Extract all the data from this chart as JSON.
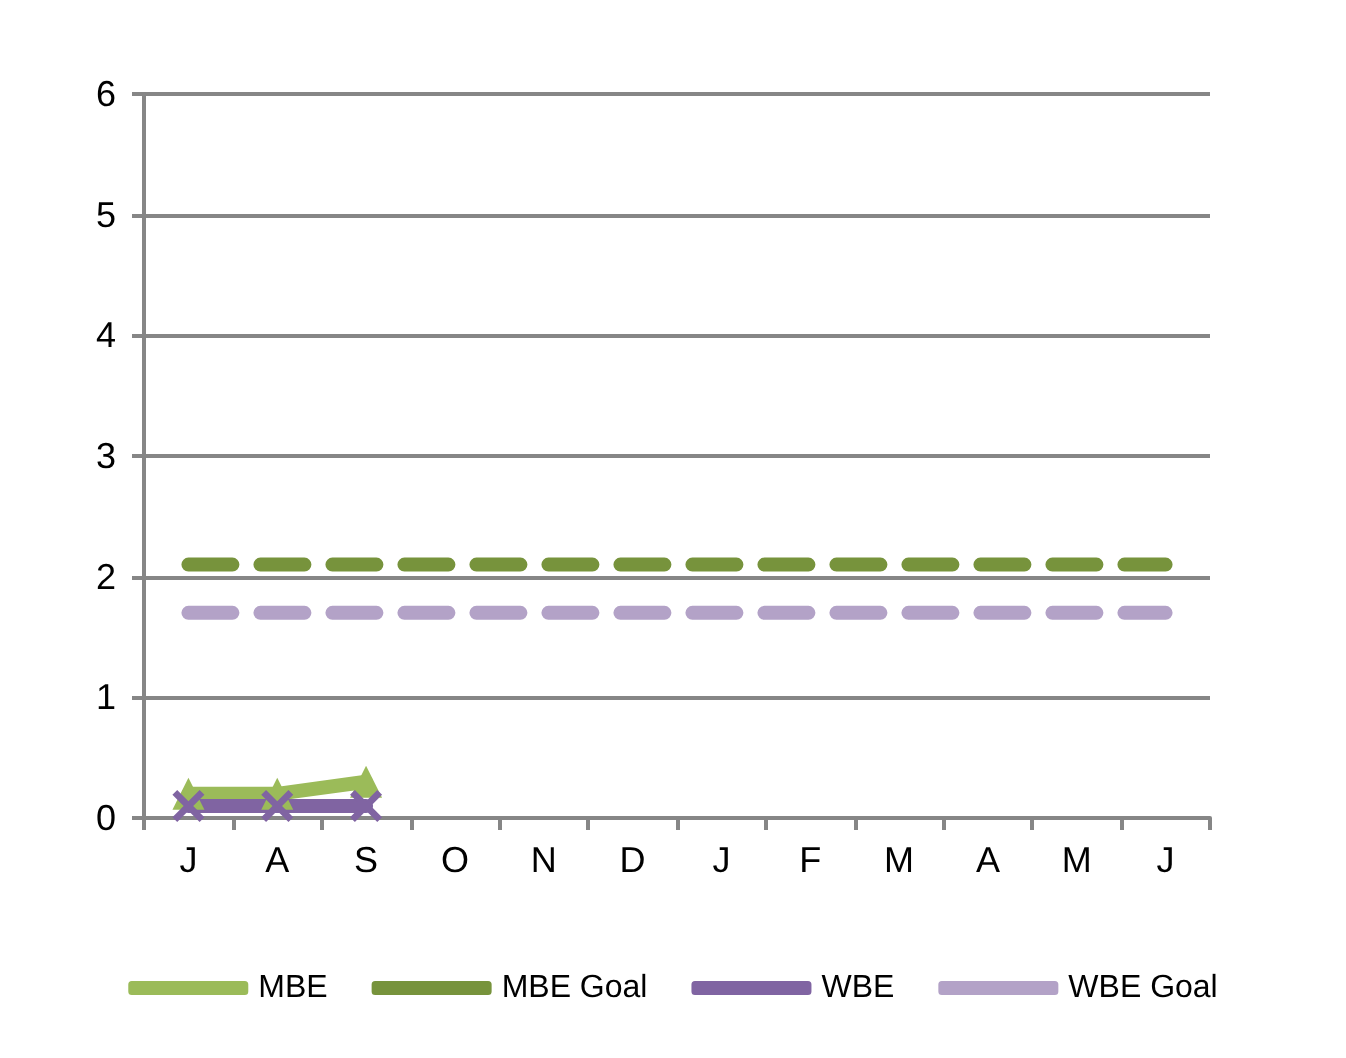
{
  "chart_data": {
    "type": "line",
    "categories": [
      "J",
      "A",
      "S",
      "O",
      "N",
      "D",
      "J",
      "F",
      "M",
      "A",
      "M",
      "J"
    ],
    "series": [
      {
        "name": "MBE",
        "color": "#9bbb59",
        "marker": "triangle",
        "line_style": "solid",
        "values": [
          0.2,
          0.2,
          0.3,
          null,
          null,
          null,
          null,
          null,
          null,
          null,
          null,
          null
        ]
      },
      {
        "name": "MBE Goal",
        "color": "#77933c",
        "marker": "none",
        "line_style": "dashed",
        "values": [
          2.1,
          2.1,
          2.1,
          2.1,
          2.1,
          2.1,
          2.1,
          2.1,
          2.1,
          2.1,
          2.1,
          2.1
        ]
      },
      {
        "name": "WBE",
        "color": "#8064a2",
        "marker": "cross",
        "line_style": "solid",
        "values": [
          0.1,
          0.1,
          0.1,
          null,
          null,
          null,
          null,
          null,
          null,
          null,
          null,
          null
        ]
      },
      {
        "name": "WBE Goal",
        "color": "#b3a2c7",
        "marker": "none",
        "line_style": "dashed",
        "values": [
          1.7,
          1.7,
          1.7,
          1.7,
          1.7,
          1.7,
          1.7,
          1.7,
          1.7,
          1.7,
          1.7,
          1.7
        ]
      }
    ],
    "ylim": [
      0,
      6
    ],
    "yticks": [
      0,
      1,
      2,
      3,
      4,
      5,
      6
    ],
    "grid": "y",
    "legend": "bottom"
  }
}
